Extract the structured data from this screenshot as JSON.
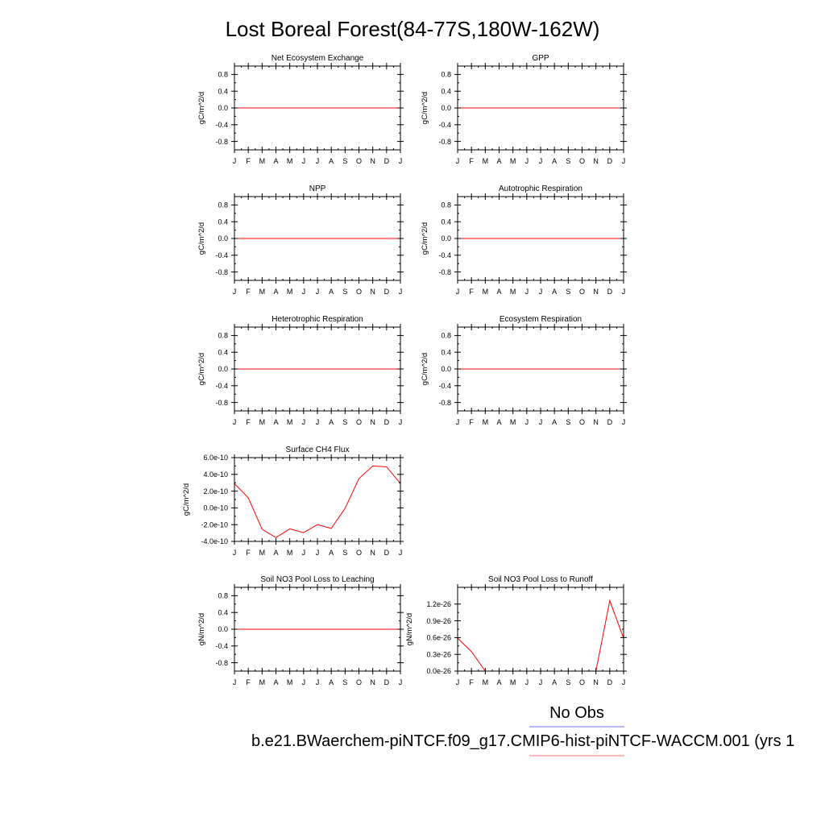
{
  "page_title": "Lost Boreal Forest(84-77S,180W-162W)",
  "legend": {
    "obs_label": "No Obs",
    "obs_color": "#0000ff",
    "model_label": "b.e21.BWaerchem-piNTCF.f09_g17.CMIP6-hist-piNTCF-WACCM.001 (yrs 1",
    "model_color": "#ff0000"
  },
  "chart_data": [
    {
      "type": "line",
      "title": "Net Ecosystem Exchange",
      "ylabel": "gC/m^2/d",
      "x": [
        "J",
        "F",
        "M",
        "A",
        "M",
        "J",
        "J",
        "A",
        "S",
        "O",
        "N",
        "D",
        "J"
      ],
      "ylim": [
        -1.0,
        1.0
      ],
      "yticks": [
        -0.8,
        -0.4,
        0.0,
        0.4,
        0.8
      ],
      "ytick_labels": [
        "-0.8",
        "-0.4",
        "0.0",
        "0.4",
        "0.8"
      ],
      "series": [
        {
          "color": "#ff0000",
          "values": [
            0,
            0,
            0,
            0,
            0,
            0,
            0,
            0,
            0,
            0,
            0,
            0,
            0
          ]
        }
      ]
    },
    {
      "type": "line",
      "title": "GPP",
      "ylabel": "gC/m^2/d",
      "x": [
        "J",
        "F",
        "M",
        "A",
        "M",
        "J",
        "J",
        "A",
        "S",
        "O",
        "N",
        "D",
        "J"
      ],
      "ylim": [
        -1.0,
        1.0
      ],
      "yticks": [
        -0.8,
        -0.4,
        0.0,
        0.4,
        0.8
      ],
      "ytick_labels": [
        "-0.8",
        "-0.4",
        "0.0",
        "0.4",
        "0.8"
      ],
      "series": [
        {
          "color": "#ff0000",
          "values": [
            0,
            0,
            0,
            0,
            0,
            0,
            0,
            0,
            0,
            0,
            0,
            0,
            0
          ]
        }
      ]
    },
    {
      "type": "line",
      "title": "NPP",
      "ylabel": "gC/m^2/d",
      "x": [
        "J",
        "F",
        "M",
        "A",
        "M",
        "J",
        "J",
        "A",
        "S",
        "O",
        "N",
        "D",
        "J"
      ],
      "ylim": [
        -1.0,
        1.0
      ],
      "yticks": [
        -0.8,
        -0.4,
        0.0,
        0.4,
        0.8
      ],
      "ytick_labels": [
        "-0.8",
        "-0.4",
        "0.0",
        "0.4",
        "0.8"
      ],
      "series": [
        {
          "color": "#ff0000",
          "values": [
            0,
            0,
            0,
            0,
            0,
            0,
            0,
            0,
            0,
            0,
            0,
            0,
            0
          ]
        }
      ]
    },
    {
      "type": "line",
      "title": "Autotrophic Respiration",
      "ylabel": "gC/m^2/d",
      "x": [
        "J",
        "F",
        "M",
        "A",
        "M",
        "J",
        "J",
        "A",
        "S",
        "O",
        "N",
        "D",
        "J"
      ],
      "ylim": [
        -1.0,
        1.0
      ],
      "yticks": [
        -0.8,
        -0.4,
        0.0,
        0.4,
        0.8
      ],
      "ytick_labels": [
        "-0.8",
        "-0.4",
        "0.0",
        "0.4",
        "0.8"
      ],
      "series": [
        {
          "color": "#ff0000",
          "values": [
            0,
            0,
            0,
            0,
            0,
            0,
            0,
            0,
            0,
            0,
            0,
            0,
            0
          ]
        }
      ]
    },
    {
      "type": "line",
      "title": "Heterotrophic Respiration",
      "ylabel": "gC/m^2/d",
      "x": [
        "J",
        "F",
        "M",
        "A",
        "M",
        "J",
        "J",
        "A",
        "S",
        "O",
        "N",
        "D",
        "J"
      ],
      "ylim": [
        -1.0,
        1.0
      ],
      "yticks": [
        -0.8,
        -0.4,
        0.0,
        0.4,
        0.8
      ],
      "ytick_labels": [
        "-0.8",
        "-0.4",
        "0.0",
        "0.4",
        "0.8"
      ],
      "series": [
        {
          "color": "#ff0000",
          "values": [
            0,
            0,
            0,
            0,
            0,
            0,
            0,
            0,
            0,
            0,
            0,
            0,
            0
          ]
        }
      ]
    },
    {
      "type": "line",
      "title": "Ecosystem Respiration",
      "ylabel": "gC/m^2/d",
      "x": [
        "J",
        "F",
        "M",
        "A",
        "M",
        "J",
        "J",
        "A",
        "S",
        "O",
        "N",
        "D",
        "J"
      ],
      "ylim": [
        -1.0,
        1.0
      ],
      "yticks": [
        -0.8,
        -0.4,
        0.0,
        0.4,
        0.8
      ],
      "ytick_labels": [
        "-0.8",
        "-0.4",
        "0.0",
        "0.4",
        "0.8"
      ],
      "series": [
        {
          "color": "#ff0000",
          "values": [
            0,
            0,
            0,
            0,
            0,
            0,
            0,
            0,
            0,
            0,
            0,
            0,
            0
          ]
        }
      ]
    },
    {
      "type": "line",
      "title": "Surface CH4 Flux",
      "ylabel": "gC/m^2/d",
      "x": [
        "J",
        "F",
        "M",
        "A",
        "M",
        "J",
        "J",
        "A",
        "S",
        "O",
        "N",
        "D",
        "J"
      ],
      "ylim": [
        -4e-10,
        6e-10
      ],
      "yticks": [
        -4e-10,
        -2e-10,
        0.0,
        2e-10,
        4e-10,
        6e-10
      ],
      "ytick_labels": [
        "-4.0e-10",
        "-2.0e-10",
        "0.0e-10",
        "2.0e-10",
        "4.0e-10",
        "6.0e-10"
      ],
      "series": [
        {
          "color": "#ff0000",
          "values": [
            2.9e-10,
            1.2e-10,
            -2.55e-10,
            -3.55e-10,
            -2.5e-10,
            -2.95e-10,
            -2e-10,
            -2.45e-10,
            -5e-12,
            3.5e-10,
            5e-10,
            4.9e-10,
            2.9e-10
          ]
        }
      ]
    },
    {
      "type": "line",
      "title": "Soil NO3 Pool Loss to Leaching",
      "ylabel": "gN/m^2/d",
      "x": [
        "J",
        "F",
        "M",
        "A",
        "M",
        "J",
        "J",
        "A",
        "S",
        "O",
        "N",
        "D",
        "J"
      ],
      "ylim": [
        -1.0,
        1.0
      ],
      "yticks": [
        -0.8,
        -0.4,
        0.0,
        0.4,
        0.8
      ],
      "ytick_labels": [
        "-0.8",
        "-0.4",
        "0.0",
        "0.4",
        "0.8"
      ],
      "series": [
        {
          "color": "#ff0000",
          "values": [
            0,
            0,
            0,
            0,
            0,
            0,
            0,
            0,
            0,
            0,
            0,
            0,
            0
          ]
        }
      ]
    },
    {
      "type": "line",
      "title": "Soil NO3 Pool Loss to Runoff",
      "ylabel": "gN/m^2/d",
      "x": [
        "J",
        "F",
        "M",
        "A",
        "M",
        "J",
        "J",
        "A",
        "S",
        "O",
        "N",
        "D",
        "J"
      ],
      "ylim": [
        0.0,
        1.5e-26
      ],
      "yticks": [
        0.0,
        3e-27,
        6e-27,
        9e-27,
        1.2e-26
      ],
      "ytick_labels": [
        "0.0e-26",
        "0.3e-26",
        "0.6e-26",
        "0.9e-26",
        "1.2e-26"
      ],
      "series": [
        {
          "color": "#ff0000",
          "values": [
            5.9e-27,
            3.5e-27,
            0,
            0,
            0,
            0,
            0,
            0,
            0,
            0,
            0,
            1.26e-26,
            5.9e-27
          ]
        }
      ]
    }
  ]
}
